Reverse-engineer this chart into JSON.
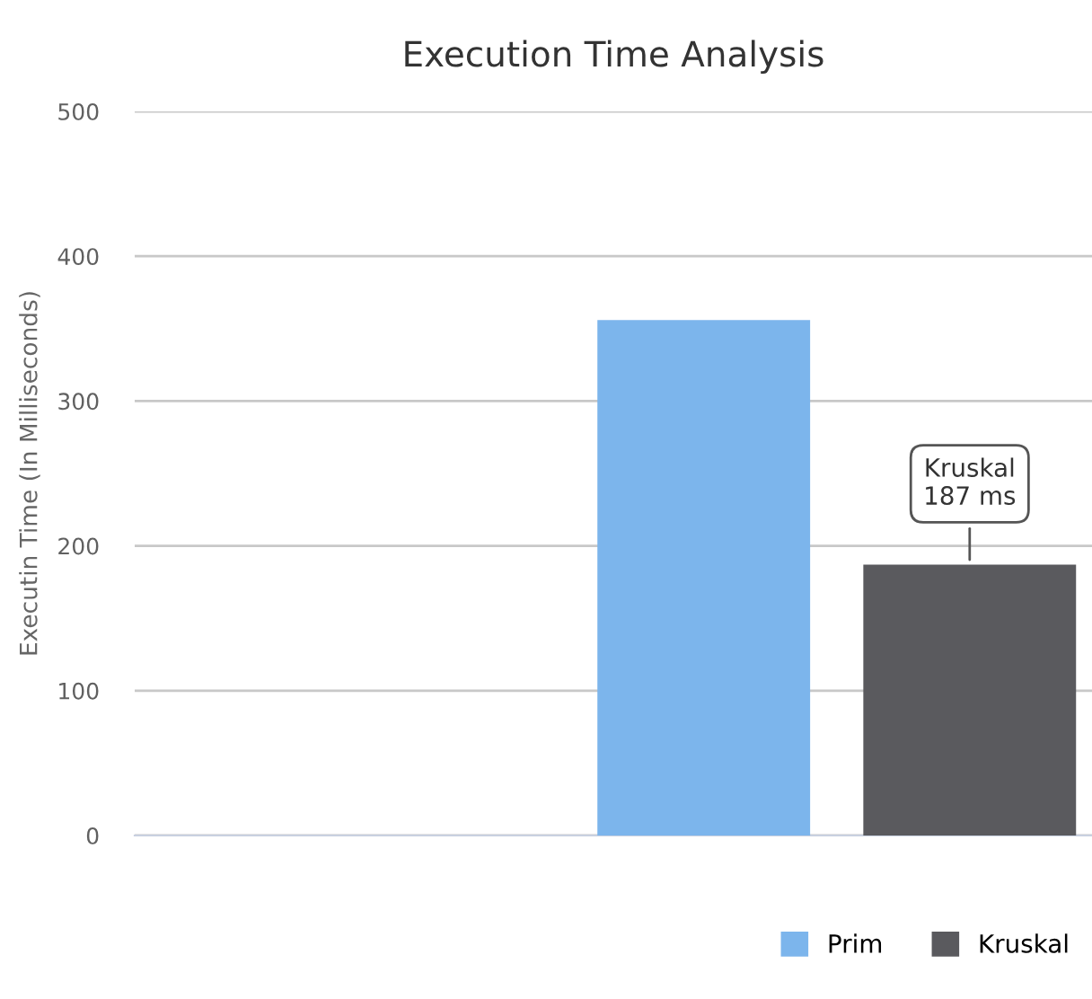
{
  "chart_data": {
    "type": "bar",
    "title": "Execution Time Analysis",
    "ylabel": "Executin Time (In Milliseconds)",
    "categories": [
      null
    ],
    "series": [
      {
        "name": "Prim",
        "color": "#7cb5ec",
        "values": [
          356
        ]
      },
      {
        "name": "Kruskal",
        "color": "#5a5a5e",
        "values": [
          187
        ]
      }
    ],
    "ylim": [
      0,
      500
    ],
    "yticks": [
      0,
      100,
      200,
      300,
      400,
      500
    ],
    "grid": "y",
    "legend": "bottom right",
    "annotations": [
      {
        "text": "Kruskal\n187 ms",
        "y": 187
      }
    ]
  }
}
